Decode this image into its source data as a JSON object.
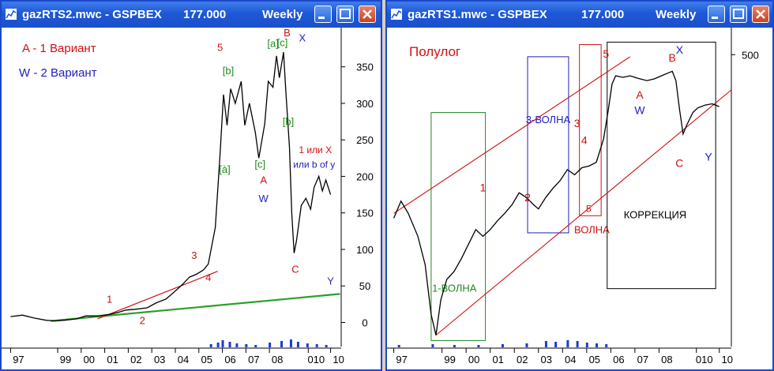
{
  "colors": {
    "price": "#000000",
    "axis": "#000000",
    "label_red": "#d01010",
    "label_blue": "#2020c0",
    "label_green": "#1f8a1f",
    "trend_green": "#2aa02a",
    "trend_red": "#d01010",
    "channel_red": "#d01010",
    "box_green": "#1f8a1f",
    "box_blue": "#2020c0",
    "box_red": "#d01010",
    "box_black": "#000000",
    "volume": "#1a3bd6"
  },
  "left_window": {
    "title": "gazRTS2.mwc - GSPBEX",
    "value": "177.000",
    "period": "Weekly",
    "legend": {
      "line1": "A - 1 Вариант",
      "line2": "W - 2  Вариант"
    }
  },
  "right_window": {
    "title": "gazRTS1.mwc - GSPBEX",
    "value": "177.000",
    "period": "Weekly",
    "scale_note": "Полулог"
  },
  "chart_data": [
    {
      "type": "line",
      "title": "",
      "scale": "linear",
      "x_tick_labels": [
        "97",
        "99",
        "00",
        "01",
        "02",
        "03",
        "04",
        "05",
        "06",
        "07",
        "08",
        "010",
        "10"
      ],
      "y_tick_labels": [
        "0",
        "50",
        "100",
        "150",
        "200",
        "250",
        "300",
        "350"
      ],
      "ylim": [
        -20,
        395
      ],
      "series": [
        {
          "values": [
            [
              1997.0,
              8
            ],
            [
              1997.5,
              10
            ],
            [
              1998.0,
              6
            ],
            [
              1998.5,
              3
            ],
            [
              1998.9,
              2
            ],
            [
              1999.3,
              3
            ],
            [
              1999.8,
              5
            ],
            [
              2000.2,
              9
            ],
            [
              2000.7,
              9
            ],
            [
              2001.2,
              11
            ],
            [
              2001.6,
              14
            ],
            [
              2001.9,
              17
            ],
            [
              2002.3,
              18
            ],
            [
              2002.8,
              20
            ],
            [
              2003.2,
              27
            ],
            [
              2003.6,
              32
            ],
            [
              2004.0,
              43
            ],
            [
              2004.3,
              52
            ],
            [
              2004.6,
              62
            ],
            [
              2004.9,
              66
            ],
            [
              2005.2,
              72
            ],
            [
              2005.4,
              80
            ],
            [
              2005.7,
              130
            ],
            [
              2005.9,
              230
            ],
            [
              2006.05,
              312
            ],
            [
              2006.2,
              270
            ],
            [
              2006.35,
              320
            ],
            [
              2006.55,
              300
            ],
            [
              2006.8,
              330
            ],
            [
              2006.95,
              270
            ],
            [
              2007.15,
              300
            ],
            [
              2007.4,
              260
            ],
            [
              2007.55,
              225
            ],
            [
              2007.8,
              272
            ],
            [
              2007.95,
              330
            ],
            [
              2008.15,
              322
            ],
            [
              2008.3,
              365
            ],
            [
              2008.42,
              335
            ],
            [
              2008.6,
              370
            ],
            [
              2008.7,
              315
            ],
            [
              2008.85,
              240
            ],
            [
              2008.95,
              150
            ],
            [
              2009.05,
              95
            ],
            [
              2009.15,
              112
            ],
            [
              2009.35,
              160
            ],
            [
              2009.55,
              170
            ],
            [
              2009.75,
              155
            ],
            [
              2009.9,
              185
            ],
            [
              2010.1,
              200
            ],
            [
              2010.25,
              180
            ],
            [
              2010.4,
              195
            ],
            [
              2010.6,
              175
            ]
          ]
        }
      ],
      "trendlines": [
        {
          "name": "green-support",
          "points": [
            [
              1998.7,
              2
            ],
            [
              2011.0,
              39
            ]
          ]
        },
        {
          "name": "red-support",
          "points": [
            [
              2000.7,
              5
            ],
            [
              2005.8,
              70
            ]
          ]
        }
      ],
      "volume": [
        [
          2005.5,
          4
        ],
        [
          2005.8,
          6
        ],
        [
          2006.0,
          9
        ],
        [
          2006.3,
          7
        ],
        [
          2006.6,
          5
        ],
        [
          2007.0,
          4
        ],
        [
          2007.4,
          3
        ],
        [
          2008.0,
          6
        ],
        [
          2008.5,
          8
        ],
        [
          2008.9,
          10
        ],
        [
          2009.2,
          7
        ],
        [
          2009.6,
          5
        ],
        [
          2010.0,
          4
        ],
        [
          2010.4,
          3
        ]
      ],
      "annotations": [
        {
          "text": "1",
          "x": 2001.2,
          "y": 27,
          "color": "label_red"
        },
        {
          "text": "2",
          "x": 2002.6,
          "y": -2,
          "color": "label_red"
        },
        {
          "text": "3",
          "x": 2004.8,
          "y": 87,
          "color": "label_red"
        },
        {
          "text": "4",
          "x": 2005.4,
          "y": 57,
          "color": "label_red"
        },
        {
          "text": "5",
          "x": 2005.9,
          "y": 372,
          "color": "label_red"
        },
        {
          "text": "[b]",
          "x": 2006.25,
          "y": 340,
          "color": "label_green"
        },
        {
          "text": "[à]",
          "x": 2006.1,
          "y": 205,
          "color": "label_green"
        },
        {
          "text": "[c]",
          "x": 2007.6,
          "y": 212,
          "color": "label_green"
        },
        {
          "text": "[a]",
          "x": 2008.15,
          "y": 377,
          "color": "label_green"
        },
        {
          "text": "[c]",
          "x": 2008.55,
          "y": 378,
          "color": "label_green"
        },
        {
          "text": "[b]",
          "x": 2008.8,
          "y": 270,
          "color": "label_green"
        },
        {
          "text": "A",
          "x": 2007.75,
          "y": 190,
          "color": "label_red"
        },
        {
          "text": "W",
          "x": 2007.75,
          "y": 165,
          "color": "label_blue"
        },
        {
          "text": "B",
          "x": 2008.75,
          "y": 392,
          "color": "label_red"
        },
        {
          "text": "X",
          "x": 2009.4,
          "y": 385,
          "color": "label_blue"
        },
        {
          "text": "C",
          "x": 2009.1,
          "y": 68,
          "color": "label_red"
        },
        {
          "text": "Y",
          "x": 2010.6,
          "y": 52,
          "color": "label_blue"
        },
        {
          "text": "1 или X",
          "x": 2009.95,
          "y": 232,
          "color": "label_red"
        },
        {
          "text": "или b of y",
          "x": 2009.9,
          "y": 212,
          "color": "label_blue"
        }
      ]
    },
    {
      "type": "line",
      "title": "",
      "scale": "semilog",
      "x_tick_labels": [
        "97",
        "99",
        "00",
        "01",
        "02",
        "03",
        "04",
        "05",
        "06",
        "07",
        "08",
        "010",
        "10"
      ],
      "y_tick_labels": [
        "500"
      ],
      "series": [
        {
          "values": [
            [
              1997.0,
              20
            ],
            [
              1997.3,
              28
            ],
            [
              1997.6,
              22
            ],
            [
              1998.0,
              14
            ],
            [
              1998.3,
              8
            ],
            [
              1998.55,
              3
            ],
            [
              1998.75,
              2
            ],
            [
              1998.95,
              4
            ],
            [
              1999.2,
              6
            ],
            [
              1999.5,
              7
            ],
            [
              1999.8,
              9
            ],
            [
              2000.1,
              12
            ],
            [
              2000.4,
              16
            ],
            [
              2000.7,
              14
            ],
            [
              2001.0,
              16
            ],
            [
              2001.3,
              19
            ],
            [
              2001.6,
              22
            ],
            [
              2001.9,
              26
            ],
            [
              2002.2,
              33
            ],
            [
              2002.5,
              30
            ],
            [
              2002.8,
              26
            ],
            [
              2003.0,
              24
            ],
            [
              2003.3,
              30
            ],
            [
              2003.6,
              36
            ],
            [
              2003.9,
              42
            ],
            [
              2004.2,
              52
            ],
            [
              2004.5,
              47
            ],
            [
              2004.8,
              54
            ],
            [
              2005.1,
              56
            ],
            [
              2005.4,
              60
            ],
            [
              2005.7,
              95
            ],
            [
              2005.9,
              170
            ],
            [
              2006.05,
              280
            ],
            [
              2006.2,
              330
            ],
            [
              2006.5,
              320
            ],
            [
              2006.8,
              330
            ],
            [
              2007.1,
              315
            ],
            [
              2007.5,
              300
            ],
            [
              2007.8,
              310
            ],
            [
              2008.1,
              330
            ],
            [
              2008.4,
              350
            ],
            [
              2008.55,
              360
            ],
            [
              2008.7,
              300
            ],
            [
              2008.85,
              170
            ],
            [
              2009.0,
              105
            ],
            [
              2009.15,
              125
            ],
            [
              2009.4,
              160
            ],
            [
              2009.6,
              175
            ],
            [
              2009.9,
              185
            ],
            [
              2010.2,
              190
            ],
            [
              2010.5,
              180
            ]
          ]
        }
      ],
      "channel": [
        {
          "name": "channel-upper",
          "points": [
            [
              1997.0,
              22
            ],
            [
              2006.8,
              480
            ]
          ]
        },
        {
          "name": "channel-lower",
          "points": [
            [
              1998.75,
              2
            ],
            [
              2011.0,
              250
            ]
          ]
        }
      ],
      "boxes": [
        {
          "name": "box-wave-1",
          "label": "1-ВОЛНА",
          "x0": 1998.55,
          "x1": 2000.8,
          "y_top": 160,
          "y_bottom": 1.8,
          "color": "box_green"
        },
        {
          "name": "box-wave-3",
          "label": "3-ВОЛНА",
          "x0": 2002.55,
          "x1": 2004.25,
          "y_top": 480,
          "y_bottom": 15,
          "color": "box_blue"
        },
        {
          "name": "box-wave-5",
          "label": "ВОЛНА",
          "sublabel": "5",
          "x0": 2004.7,
          "x1": 2005.6,
          "y_top": 610,
          "y_bottom": 21,
          "color": "box_red"
        },
        {
          "name": "box-correction",
          "label": "КОРРЕКЦИЯ",
          "x0": 2005.85,
          "x1": 2010.35,
          "y_top": 640,
          "y_bottom": 5,
          "color": "box_black"
        }
      ],
      "volume": [
        [
          1997.2,
          3
        ],
        [
          1998.6,
          4
        ],
        [
          1999.5,
          3
        ],
        [
          2000.5,
          3
        ],
        [
          2001.5,
          4
        ],
        [
          2002.5,
          5
        ],
        [
          2003.3,
          8
        ],
        [
          2003.7,
          7
        ],
        [
          2004.2,
          9
        ],
        [
          2004.6,
          8
        ],
        [
          2005.0,
          6
        ],
        [
          2005.4,
          5
        ],
        [
          2005.8,
          4
        ]
      ],
      "annotations": [
        {
          "text": "1",
          "x": 2000.7,
          "y": 34,
          "color": "label_red"
        },
        {
          "text": "2",
          "x": 2002.55,
          "y": 28,
          "color": "label_red"
        },
        {
          "text": "3",
          "x": 2004.6,
          "y": 120,
          "color": "label_red"
        },
        {
          "text": "4",
          "x": 2004.9,
          "y": 86,
          "color": "label_red"
        },
        {
          "text": "5",
          "x": 2005.8,
          "y": 470,
          "color": "label_red"
        },
        {
          "text": "A",
          "x": 2007.2,
          "y": 210,
          "color": "label_red"
        },
        {
          "text": "W",
          "x": 2007.2,
          "y": 155,
          "color": "label_blue"
        },
        {
          "text": "B",
          "x": 2008.55,
          "y": 435,
          "color": "label_red"
        },
        {
          "text": "X",
          "x": 2008.85,
          "y": 510,
          "color": "label_blue"
        },
        {
          "text": "C",
          "x": 2008.85,
          "y": 55,
          "color": "label_red"
        },
        {
          "text": "Y",
          "x": 2010.05,
          "y": 62,
          "color": "label_blue"
        }
      ]
    }
  ]
}
